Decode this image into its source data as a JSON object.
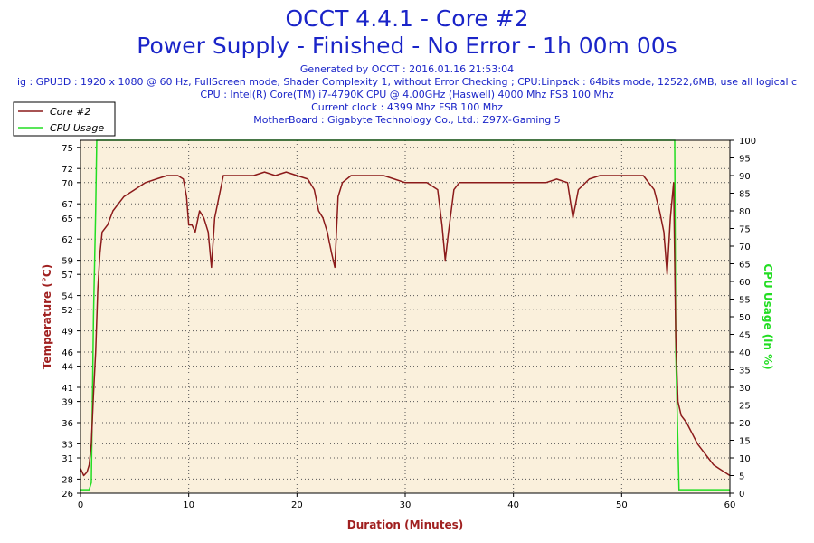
{
  "header": {
    "title": "OCCT 4.4.1 - Core #2",
    "subtitle": "Power Supply - Finished - No Error - 1h 00m 00s",
    "generated": "Generated by OCCT : 2016.01.16 21:53:04",
    "config": "ig : GPU3D : 1920 x 1080 @ 60 Hz, FullScreen mode, Shader Complexity 1, without Error Checking ; CPU:Linpack : 64bits mode, 12522,6MB, use all logical c",
    "cpu": "CPU : Intel(R) Core(TM) i7-4790K CPU @ 4.00GHz (Haswell) 4000 Mhz FSB 100 Mhz",
    "clock": "Current clock : 4399 Mhz FSB 100 Mhz",
    "motherboard": "MotherBoard : Gigabyte Technology Co., Ltd.: Z97X-Gaming 5"
  },
  "colors": {
    "plot_bg": "#faf0dc",
    "core_line": "#8b1a1a",
    "cpu_line": "#22dd22",
    "title": "#1a24c8",
    "ylabel": "#a02020",
    "y2label": "#22dd22"
  },
  "chart_data": {
    "type": "line",
    "x_label": "Duration (Minutes)",
    "y_label": "Temperature (°C)",
    "y2_label": "CPU Usage (in %)",
    "x_range": [
      0,
      60
    ],
    "y_range": [
      26,
      76
    ],
    "y2_range": [
      0,
      100
    ],
    "x_ticks": [
      0,
      10,
      20,
      30,
      40,
      50,
      60
    ],
    "y_ticks": [
      26,
      28,
      31,
      33,
      36,
      39,
      41,
      44,
      46,
      49,
      52,
      54,
      57,
      59,
      62,
      65,
      67,
      70,
      72,
      75
    ],
    "y2_ticks": [
      0,
      5,
      10,
      15,
      20,
      25,
      30,
      35,
      40,
      45,
      50,
      55,
      60,
      65,
      70,
      75,
      80,
      85,
      90,
      95,
      100
    ],
    "grid": true,
    "legend_position": "top-left",
    "series": [
      {
        "name": "Core #2",
        "axis": "left",
        "x": [
          0,
          0.3,
          0.6,
          0.8,
          1.0,
          1.2,
          1.4,
          1.6,
          1.8,
          2.0,
          2.5,
          3.0,
          3.5,
          4.0,
          5.0,
          6.0,
          7.0,
          8.0,
          9.0,
          9.5,
          9.8,
          10.0,
          10.3,
          10.6,
          11.0,
          11.4,
          11.8,
          12.1,
          12.4,
          12.8,
          13.2,
          13.6,
          14.0,
          15.0,
          16.0,
          17.0,
          18.0,
          19.0,
          20.0,
          21.0,
          21.6,
          22.0,
          22.4,
          22.8,
          23.2,
          23.5,
          23.8,
          24.2,
          24.6,
          25.0,
          26.0,
          27.0,
          28.0,
          29.0,
          30.0,
          31.0,
          32.0,
          33.0,
          33.4,
          33.7,
          34.0,
          34.5,
          35.0,
          36.0,
          37.0,
          38.0,
          39.0,
          40.0,
          41.0,
          42.0,
          43.0,
          44.0,
          45.0,
          45.5,
          46.0,
          47.0,
          48.0,
          49.0,
          50.0,
          51.0,
          52.0,
          53.0,
          53.5,
          53.9,
          54.2,
          54.5,
          54.8,
          55.0,
          55.2,
          55.5,
          56.0,
          56.5,
          57.0,
          57.5,
          58.0,
          58.5,
          59.0,
          59.5,
          60.0
        ],
        "values": [
          29.5,
          28.5,
          29,
          30,
          33,
          40,
          46,
          55,
          60,
          63,
          64,
          66,
          67,
          68,
          69,
          70,
          70.5,
          71,
          71,
          70.5,
          68,
          64,
          64,
          63,
          66,
          65,
          63,
          58,
          65,
          68,
          71,
          71,
          71,
          71,
          71,
          71.5,
          71,
          71.5,
          71,
          70.5,
          69,
          66,
          65,
          63,
          60,
          58,
          68,
          70,
          70.5,
          71,
          71,
          71,
          71,
          70.5,
          70,
          70,
          70,
          69,
          64,
          59,
          63,
          69,
          70,
          70,
          70,
          70,
          70,
          70,
          70,
          70,
          70,
          70.5,
          70,
          65,
          69,
          70.5,
          71,
          71,
          71,
          71,
          71,
          69,
          66,
          63,
          57,
          65,
          70,
          48,
          39,
          37,
          36,
          34.5,
          33,
          32,
          31,
          30,
          29.5,
          29,
          28.5
        ]
      },
      {
        "name": "CPU Usage",
        "axis": "right",
        "x": [
          0,
          0.8,
          1.0,
          1.2,
          1.4,
          1.5,
          20,
          40,
          54.9,
          55.0,
          55.3,
          60
        ],
        "values": [
          1,
          1,
          3,
          50,
          80,
          100,
          100,
          100,
          100,
          40,
          1,
          1
        ]
      }
    ]
  }
}
